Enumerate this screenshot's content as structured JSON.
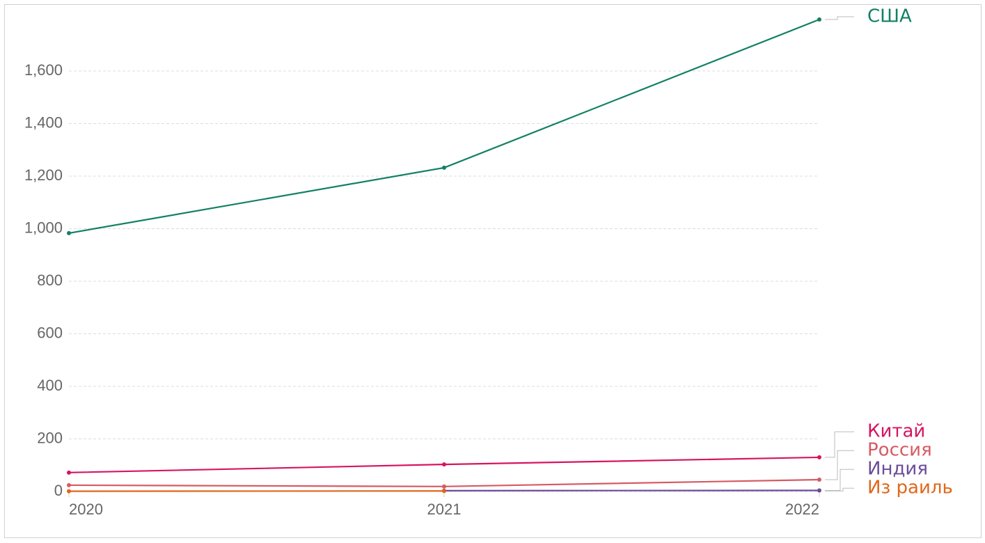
{
  "chart_data": {
    "type": "line",
    "x": [
      2020,
      2021,
      2022
    ],
    "xlim": [
      2020,
      2022
    ],
    "xticks": [
      2020,
      2021,
      2022
    ],
    "ylim": [
      0,
      1800
    ],
    "yticks": [
      {
        "value": 0,
        "label": "0"
      },
      {
        "value": 200,
        "label": "200"
      },
      {
        "value": 400,
        "label": "400"
      },
      {
        "value": 600,
        "label": "600"
      },
      {
        "value": 800,
        "label": "800"
      },
      {
        "value": 1000,
        "label": "1,000"
      },
      {
        "value": 1200,
        "label": "1,200"
      },
      {
        "value": 1400,
        "label": "1,400"
      },
      {
        "value": 1600,
        "label": "1,600"
      }
    ],
    "grid": true,
    "series": [
      {
        "name": "США",
        "color": "#128063",
        "values": [
          983,
          1232,
          1796
        ]
      },
      {
        "name": "Китай",
        "color": "#d6155e",
        "values": [
          72,
          103,
          130
        ]
      },
      {
        "name": "Россия",
        "color": "#d65a63",
        "values": [
          24,
          19,
          45
        ]
      },
      {
        "name": "Индия",
        "color": "#6b4c9a",
        "values": [
          null,
          3,
          4
        ]
      },
      {
        "name": "Из раиль",
        "color": "#e0671a",
        "values": [
          1,
          2,
          null
        ]
      }
    ]
  }
}
